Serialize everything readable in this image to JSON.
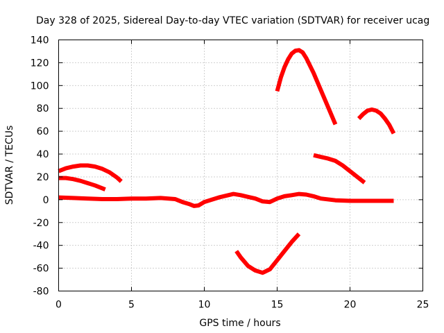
{
  "chart_data": {
    "type": "line",
    "title": "Day 328 of 2025, Sidereal Day-to-day VTEC variation (SDTVAR) for receiver ucag",
    "xlabel": "GPS time / hours",
    "ylabel": "SDTVAR / TECUs",
    "xlim": [
      0,
      25
    ],
    "ylim": [
      -80,
      140
    ],
    "xticks": [
      0,
      5,
      10,
      15,
      20,
      25
    ],
    "yticks": [
      -80,
      -60,
      -40,
      -20,
      0,
      20,
      40,
      60,
      80,
      100,
      120,
      140
    ],
    "grid": true,
    "legend": "none",
    "color": "#ff0000",
    "series": [
      {
        "x": [
          0,
          0.5,
          1,
          1.5,
          2,
          2.5,
          3,
          3.5,
          4,
          4.3
        ],
        "y": [
          25,
          27.5,
          29,
          30,
          30,
          29,
          27,
          24,
          19.5,
          16
        ]
      },
      {
        "x": [
          0,
          0.5,
          1,
          1.5,
          2,
          2.5,
          3,
          3.2
        ],
        "y": [
          19,
          19,
          18,
          16.5,
          14.5,
          12.5,
          10,
          9
        ]
      },
      {
        "x": [
          0,
          1,
          2,
          3,
          4,
          5,
          6,
          7,
          8,
          8.5,
          9,
          9.3,
          9.6,
          10,
          10.5,
          11,
          11.5,
          12,
          12.5,
          13,
          13.5,
          14,
          14.5,
          15,
          15.5,
          16,
          16.5,
          17,
          17.5,
          18,
          19,
          20,
          21,
          22,
          23
        ],
        "y": [
          2,
          1.5,
          1,
          0.5,
          0.5,
          1,
          1,
          1.5,
          0.5,
          -2,
          -4,
          -5.5,
          -5,
          -2,
          0,
          2,
          3.5,
          5,
          4,
          2.5,
          1,
          -1.5,
          -2,
          1,
          3,
          4,
          5,
          4.5,
          3,
          1,
          -0.5,
          -1,
          -1,
          -1,
          -1
        ]
      },
      {
        "x": [
          15,
          15.25,
          15.5,
          15.75,
          16,
          16.25,
          16.5,
          16.75,
          17,
          17.5,
          18,
          18.5,
          19
        ],
        "y": [
          95,
          107,
          116,
          123,
          128,
          130.5,
          131,
          129,
          124,
          111,
          96,
          81,
          66
        ]
      },
      {
        "x": [
          20.6,
          20.9,
          21.2,
          21.5,
          21.8,
          22.1,
          22.4,
          22.7,
          23
        ],
        "y": [
          71,
          75,
          78,
          79,
          78,
          75.5,
          71,
          65.5,
          58
        ]
      },
      {
        "x": [
          17.5,
          18,
          18.5,
          19,
          19.5,
          20,
          20.5,
          21
        ],
        "y": [
          39,
          37.5,
          36,
          34,
          30,
          25,
          20,
          15
        ]
      },
      {
        "x": [
          12.2,
          12.5,
          13,
          13.5,
          14,
          14.5,
          15,
          15.5,
          16,
          16.5
        ],
        "y": [
          -45,
          -50.5,
          -58,
          -62,
          -64,
          -61,
          -53,
          -45,
          -37,
          -30
        ]
      }
    ]
  }
}
